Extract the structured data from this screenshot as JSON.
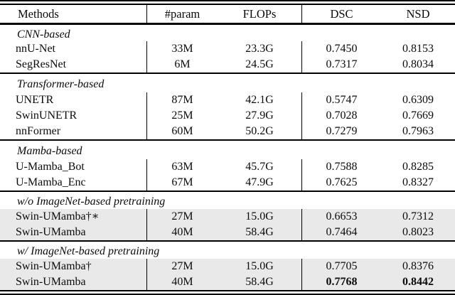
{
  "table": {
    "headers": [
      "Methods",
      "#param",
      "FLOPs",
      "DSC",
      "NSD"
    ],
    "highlight_color": "#e9e9e9",
    "sections": [
      {
        "label": "CNN-based",
        "rows": [
          {
            "method": "nnU-Net",
            "param": "33M",
            "flops": "23.3G",
            "dsc": "0.7450",
            "nsd": "0.8153"
          },
          {
            "method": "SegResNet",
            "param": "6M",
            "flops": "24.5G",
            "dsc": "0.7317",
            "nsd": "0.8034"
          }
        ]
      },
      {
        "label": "Transformer-based",
        "rows": [
          {
            "method": "UNETR",
            "param": "87M",
            "flops": "42.1G",
            "dsc": "0.5747",
            "nsd": "0.6309"
          },
          {
            "method": "SwinUNETR",
            "param": "25M",
            "flops": "27.9G",
            "dsc": "0.7028",
            "nsd": "0.7669"
          },
          {
            "method": "nnFormer",
            "param": "60M",
            "flops": "50.2G",
            "dsc": "0.7279",
            "nsd": "0.7963"
          }
        ]
      },
      {
        "label": "Mamba-based",
        "rows": [
          {
            "method": "U-Mamba_Bot",
            "param": "63M",
            "flops": "45.7G",
            "dsc": "0.7588",
            "nsd": "0.8285"
          },
          {
            "method": "U-Mamba_Enc",
            "param": "67M",
            "flops": "47.9G",
            "dsc": "0.7625",
            "nsd": "0.8327"
          }
        ]
      },
      {
        "label": "w/o ImageNet-based pretraining",
        "rows": [
          {
            "method": "Swin-UMamba†∗",
            "param": "27M",
            "flops": "15.0G",
            "dsc": "0.6653",
            "nsd": "0.7312"
          },
          {
            "method": "Swin-UMamba",
            "param": "40M",
            "flops": "58.4G",
            "dsc": "0.7464",
            "nsd": "0.8023"
          }
        ]
      },
      {
        "label": "w/ ImageNet-based pretraining",
        "rows": [
          {
            "method": "Swin-UMamba†",
            "param": "27M",
            "flops": "15.0G",
            "dsc": "0.7705",
            "nsd": "0.8376"
          },
          {
            "method": "Swin-UMamba",
            "param": "40M",
            "flops": "58.4G",
            "dsc": "0.7768",
            "nsd": "0.8442"
          }
        ]
      }
    ]
  }
}
